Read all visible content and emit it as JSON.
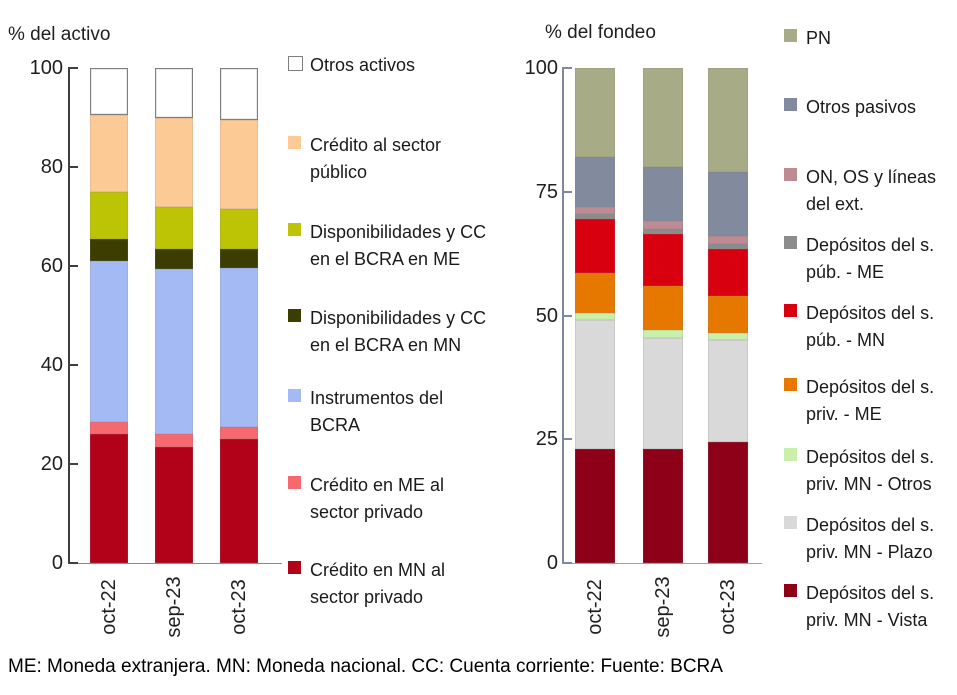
{
  "footer": "ME: Moneda extranjera. MN: Moneda nacional. CC: Cuenta corriente: Fuente: BCRA",
  "chart_data": [
    {
      "type": "bar",
      "stacked": true,
      "title": "% del activo",
      "categories": [
        "oct-22",
        "sep-23",
        "oct-23"
      ],
      "y_ticks": [
        0,
        20,
        40,
        60,
        80,
        100
      ],
      "ylim": [
        0,
        100
      ],
      "legend_position": "right",
      "series": [
        {
          "name": "Crédito en MN al sector privado",
          "color": "#B2021A",
          "values": [
            26,
            23.5,
            25
          ]
        },
        {
          "name": "Crédito en ME al sector privado",
          "color": "#F5696F",
          "values": [
            2.5,
            2.5,
            2.5
          ]
        },
        {
          "name": "Instrumentos del BCRA",
          "color": "#A3BAF5",
          "values": [
            32.5,
            33.5,
            32
          ]
        },
        {
          "name": "Disponibilidades y CC en el BCRA en MN",
          "color": "#3B3D01",
          "values": [
            4.5,
            4,
            4
          ]
        },
        {
          "name": "Disponibilidades y CC en el BCRA en ME",
          "color": "#BCC405",
          "values": [
            9.5,
            8.5,
            8
          ]
        },
        {
          "name": "Crédito al sector público",
          "color": "#FBCA95",
          "values": [
            15.5,
            18,
            18
          ]
        },
        {
          "name": "Otros activos",
          "color": "#FFFFFF",
          "border": "#7F7F7F",
          "values": [
            9.5,
            10,
            10.5
          ]
        }
      ]
    },
    {
      "type": "bar",
      "stacked": true,
      "title": "% del fondeo",
      "categories": [
        "oct-22",
        "sep-23",
        "oct-23"
      ],
      "y_ticks": [
        0,
        25,
        50,
        75,
        100
      ],
      "ylim": [
        0,
        100
      ],
      "legend_position": "right",
      "series": [
        {
          "name": "Depósitos del s. priv. MN - Vista",
          "color": "#8E0018",
          "values": [
            23,
            23,
            24.5
          ]
        },
        {
          "name": "Depósitos del s. priv. MN - Plazo",
          "color": "#D9D9D9",
          "values": [
            26,
            22.5,
            20.5
          ]
        },
        {
          "name": "Depósitos del s. priv. MN - Otros",
          "color": "#C9F0A9",
          "values": [
            1.5,
            1.5,
            1.5
          ]
        },
        {
          "name": "Depósitos del s. priv. - ME",
          "color": "#E67800",
          "values": [
            8,
            9,
            7.5
          ]
        },
        {
          "name": "Depósitos del s. púb. - MN",
          "color": "#D8000F",
          "values": [
            11,
            10.5,
            9.5
          ]
        },
        {
          "name": "Depósitos del s. púb. - ME",
          "color": "#8C8C8C",
          "values": [
            1,
            1,
            1
          ]
        },
        {
          "name": "ON, OS y líneas del ext.",
          "color": "#BD8B91",
          "values": [
            1.5,
            1.5,
            1.5
          ]
        },
        {
          "name": "Otros pasivos",
          "color": "#828A9E",
          "values": [
            10,
            11,
            13
          ]
        },
        {
          "name": "PN",
          "color": "#A7AC86",
          "values": [
            18,
            20,
            21
          ]
        }
      ]
    }
  ]
}
